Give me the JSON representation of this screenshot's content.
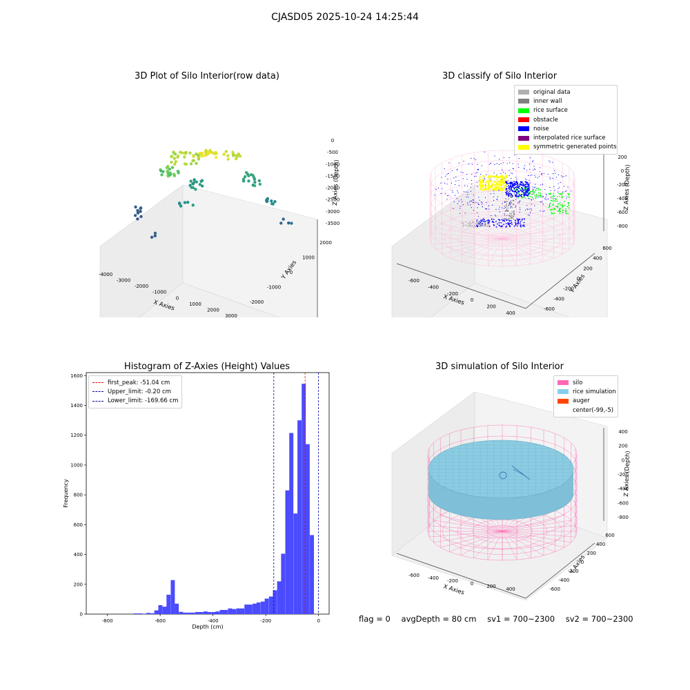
{
  "suptitle": "CJASD05 2025-10-24 14:25:44",
  "panels": {
    "raw": {
      "title": "3D Plot of Silo Interior(row data)",
      "xlabel": "X Axies",
      "ylabel": "Y Axies",
      "zlabel": "Z Axies (Depth)",
      "xticks": [
        "-4000",
        "-3000",
        "-2000",
        "-1000",
        "0",
        "1000",
        "2000",
        "3000"
      ],
      "yticks": [
        "-2000",
        "-1000",
        "0",
        "1000",
        "2000"
      ],
      "zticks": [
        "0",
        "-500",
        "-1000",
        "-1500",
        "-2000",
        "-2500",
        "-3000",
        "-3500"
      ]
    },
    "classify": {
      "title": "3D classify of Silo Interior",
      "xlabel": "X Axies",
      "ylabel": "Y Axies",
      "zlabel": "Z Axies (Depth)",
      "xticks": [
        "-600",
        "-400",
        "-200",
        "0",
        "200",
        "400"
      ],
      "yticks": [
        "-600",
        "-400",
        "-200",
        "0",
        "200",
        "400",
        "600"
      ],
      "zticks": [
        "200",
        "0",
        "-200",
        "-400",
        "-600",
        "-800"
      ],
      "legend": [
        {
          "label": "original data",
          "color": "#b0b0b0"
        },
        {
          "label": "inner wall",
          "color": "#808080"
        },
        {
          "label": "rice surface",
          "color": "#00ff00"
        },
        {
          "label": "obstacle",
          "color": "#ff0000"
        },
        {
          "label": "noise",
          "color": "#0000ff"
        },
        {
          "label": "interpolated rice surface",
          "color": "#800080"
        },
        {
          "label": "symmetric generated points",
          "color": "#ffff00"
        }
      ]
    },
    "histogram": {
      "title": "Histogram of Z-Axies (Height) Values",
      "xlabel": "Depth (cm)",
      "ylabel": "Frequency",
      "legend": [
        {
          "label": "first_peak: -51.04 cm",
          "color": "#ff0000"
        },
        {
          "label": "Upper_limit: -0.20 cm",
          "color": "#0000aa"
        },
        {
          "label": "Lower_limit: -169.66 cm",
          "color": "#0000aa"
        }
      ]
    },
    "simulation": {
      "title": "3D simulation of Silo Interior",
      "xlabel": "X Axies",
      "ylabel": "Y Axies",
      "zlabel": "Z Axies (Depth)",
      "xticks": [
        "-600",
        "-400",
        "-200",
        "0",
        "200",
        "400"
      ],
      "yticks": [
        "-600",
        "-400",
        "-200",
        "0",
        "200",
        "400",
        "600"
      ],
      "zticks": [
        "400",
        "200",
        "0",
        "-200",
        "-400",
        "-600",
        "-800"
      ],
      "legend": [
        {
          "label": "silo",
          "color": "#ff69b4"
        },
        {
          "label": "rice simulation",
          "color": "#87ceeb"
        },
        {
          "label": "auger",
          "color": "#ff4500"
        },
        {
          "label": "center(-99,-5)",
          "color": "#ffffff"
        }
      ]
    }
  },
  "footer": {
    "flag": "flag = 0",
    "avg_depth": "avgDepth = 80 cm",
    "sv1": "sv1 = 700~2300",
    "sv2": "sv2 = 700~2300"
  },
  "chart_data": {
    "type": "bar",
    "title": "Histogram of Z-Axies (Height) Values",
    "xlabel": "Depth (cm)",
    "ylabel": "Frequency",
    "xlim": [
      -880,
      40
    ],
    "ylim": [
      0,
      1620
    ],
    "xticks": [
      -800,
      -600,
      -400,
      -200,
      0
    ],
    "yticks": [
      0,
      200,
      400,
      600,
      800,
      1000,
      1200,
      1400,
      1600
    ],
    "bin_width": 15.5,
    "bar_color": "#4b4bff",
    "bins": [
      {
        "x": -700,
        "v": 5
      },
      {
        "x": -684,
        "v": 5
      },
      {
        "x": -669,
        "v": 3
      },
      {
        "x": -653,
        "v": 8
      },
      {
        "x": -638,
        "v": 6
      },
      {
        "x": -622,
        "v": 25
      },
      {
        "x": -607,
        "v": 60
      },
      {
        "x": -591,
        "v": 50
      },
      {
        "x": -576,
        "v": 130
      },
      {
        "x": -560,
        "v": 228
      },
      {
        "x": -545,
        "v": 70
      },
      {
        "x": -529,
        "v": 15
      },
      {
        "x": -514,
        "v": 10
      },
      {
        "x": -498,
        "v": 10
      },
      {
        "x": -483,
        "v": 10
      },
      {
        "x": -467,
        "v": 14
      },
      {
        "x": -452,
        "v": 14
      },
      {
        "x": -436,
        "v": 18
      },
      {
        "x": -421,
        "v": 14
      },
      {
        "x": -405,
        "v": 14
      },
      {
        "x": -390,
        "v": 18
      },
      {
        "x": -374,
        "v": 28
      },
      {
        "x": -359,
        "v": 28
      },
      {
        "x": -343,
        "v": 38
      },
      {
        "x": -328,
        "v": 34
      },
      {
        "x": -312,
        "v": 38
      },
      {
        "x": -297,
        "v": 38
      },
      {
        "x": -281,
        "v": 64
      },
      {
        "x": -266,
        "v": 64
      },
      {
        "x": -250,
        "v": 70
      },
      {
        "x": -235,
        "v": 78
      },
      {
        "x": -219,
        "v": 84
      },
      {
        "x": -204,
        "v": 104
      },
      {
        "x": -188,
        "v": 118
      },
      {
        "x": -173,
        "v": 160
      },
      {
        "x": -157,
        "v": 220
      },
      {
        "x": -142,
        "v": 405
      },
      {
        "x": -126,
        "v": 830
      },
      {
        "x": -111,
        "v": 1215
      },
      {
        "x": -95,
        "v": 675
      },
      {
        "x": -80,
        "v": 1300
      },
      {
        "x": -64,
        "v": 1545
      },
      {
        "x": -49,
        "v": 1140
      },
      {
        "x": -33,
        "v": 530
      }
    ],
    "vlines": [
      {
        "name": "first_peak",
        "value": -51.04,
        "color": "#ff0000"
      },
      {
        "name": "Upper_limit",
        "value": -0.2,
        "color": "#0000aa"
      },
      {
        "name": "Lower_limit",
        "value": -169.66,
        "color": "#0000aa"
      }
    ],
    "legend_position": "upper-left"
  }
}
